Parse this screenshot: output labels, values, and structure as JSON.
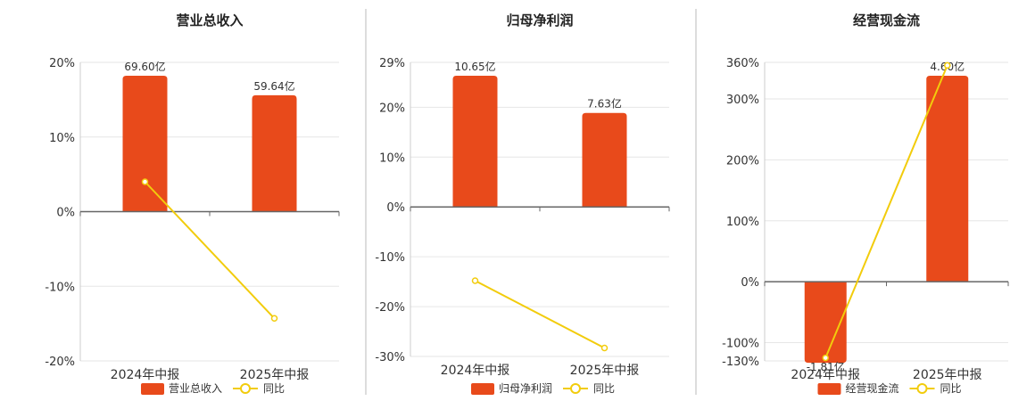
{
  "colors": {
    "bar": "#E84A1B",
    "line": "#F2CC0C",
    "grid": "#E6E6E6",
    "axis": "#666666",
    "divider": "#BBBBBB"
  },
  "chart_data": [
    {
      "type": "bar",
      "title": "营业总收入",
      "categories": [
        "2024年中报",
        "2025年中报"
      ],
      "bar_series": {
        "name": "营业总收入",
        "values": [
          69.6,
          59.64
        ],
        "labels": [
          "69.60亿",
          "59.64亿"
        ]
      },
      "line_series": {
        "name": "同比",
        "values": [
          4.0,
          -14.3
        ]
      },
      "y_axis": {
        "min": -20,
        "max": 20,
        "ticks": [
          20,
          10,
          0,
          -10,
          -20
        ],
        "tick_labels": [
          "20%",
          "10%",
          "0%",
          "-10%",
          "-20%"
        ]
      },
      "legend": "bottom"
    },
    {
      "type": "bar",
      "title": "归母净利润",
      "categories": [
        "2024年中报",
        "2025年中报"
      ],
      "bar_series": {
        "name": "归母净利润",
        "values": [
          10.65,
          7.63
        ],
        "labels": [
          "10.65亿",
          "7.63亿"
        ]
      },
      "line_series": {
        "name": "同比",
        "values": [
          -14.8,
          -28.3
        ]
      },
      "y_axis": {
        "min": -30,
        "max": 29,
        "ticks": [
          29,
          20,
          10,
          0,
          -10,
          -20,
          -30
        ],
        "tick_labels": [
          "29%",
          "20%",
          "10%",
          "0%",
          "-10%",
          "-20%",
          "-30%"
        ]
      },
      "legend": "bottom"
    },
    {
      "type": "bar",
      "title": "经营现金流",
      "categories": [
        "2024年中报",
        "2025年中报"
      ],
      "bar_series": {
        "name": "经营现金流",
        "values": [
          -1.81,
          4.6
        ],
        "labels": [
          "-1.81亿",
          "4.60亿"
        ]
      },
      "line_series": {
        "name": "同比",
        "values": [
          -125,
          355
        ]
      },
      "y_axis": {
        "min": -130,
        "max": 360,
        "ticks": [
          360,
          300,
          200,
          100,
          0,
          -100,
          -130
        ],
        "tick_labels": [
          "360%",
          "300%",
          "200%",
          "100%",
          "0%",
          "-100%",
          "-130%"
        ]
      },
      "legend": "bottom"
    }
  ]
}
